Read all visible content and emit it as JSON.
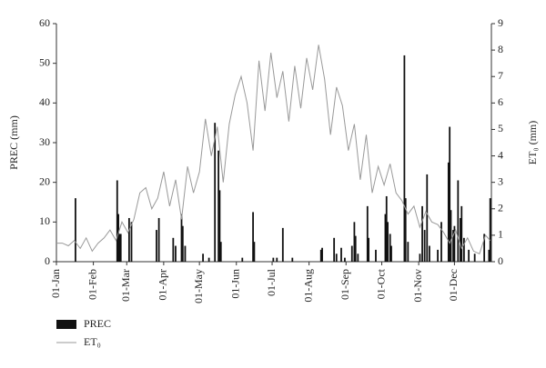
{
  "chart_data": {
    "type": "bar",
    "ylabel": "PREC (mm)",
    "y2label": "ET₀ (mm)",
    "xlim": [
      1,
      366
    ],
    "xticks": [
      {
        "value": 1,
        "label": "01-Jan"
      },
      {
        "value": 32,
        "label": "01-Feb"
      },
      {
        "value": 60,
        "label": "01-Mar"
      },
      {
        "value": 91,
        "label": "01-Apr"
      },
      {
        "value": 121,
        "label": "01-May"
      },
      {
        "value": 152,
        "label": "01-Jun"
      },
      {
        "value": 182,
        "label": "01-Jul"
      },
      {
        "value": 213,
        "label": "01-Aug"
      },
      {
        "value": 244,
        "label": "01-Sep"
      },
      {
        "value": 274,
        "label": "01-Oct"
      },
      {
        "value": 305,
        "label": "01-Nov"
      },
      {
        "value": 335,
        "label": "01-Dec"
      }
    ],
    "ylim": [
      0,
      60
    ],
    "yticks": [
      0,
      10,
      20,
      30,
      40,
      50,
      60
    ],
    "y2lim": [
      0,
      9
    ],
    "y2ticks": [
      0,
      1,
      2,
      3,
      4,
      5,
      6,
      7,
      8,
      9
    ],
    "grid": false,
    "series": [
      {
        "name": "PREC",
        "type": "bar",
        "color": "#111111",
        "x": [
          17,
          52,
          53,
          54,
          55,
          62,
          64,
          85,
          87,
          99,
          101,
          106,
          107,
          109,
          124,
          129,
          134,
          137,
          138,
          139,
          157,
          166,
          167,
          183,
          186,
          191,
          199,
          223,
          224,
          234,
          236,
          240,
          243,
          249,
          251,
          252,
          254,
          262,
          263,
          269,
          277,
          278,
          279,
          281,
          282,
          293,
          294,
          296,
          306,
          308,
          310,
          312,
          314,
          321,
          324,
          330,
          331,
          332,
          334,
          335,
          338,
          340,
          341,
          343,
          347,
          352,
          360,
          364,
          365
        ],
        "values": [
          16,
          20.5,
          12,
          7,
          7,
          11,
          10,
          8,
          11,
          6,
          4,
          12,
          9,
          4,
          2,
          1,
          35,
          28,
          18,
          5,
          1,
          12.5,
          5,
          1,
          1,
          8.5,
          1,
          3,
          3.5,
          6,
          2,
          3.5,
          1,
          4,
          10,
          6.5,
          2,
          14,
          6,
          3,
          12,
          16.5,
          10,
          7,
          4,
          52,
          16,
          5,
          2,
          14,
          8,
          22,
          4,
          3,
          10,
          25,
          34,
          13,
          8,
          9,
          20.5,
          11,
          14,
          6,
          3,
          2,
          7,
          3,
          16
        ]
      },
      {
        "name": "ET₀",
        "type": "line",
        "axis": "y2",
        "color": "#999999",
        "x": [
          1,
          6,
          11,
          16,
          21,
          26,
          31,
          36,
          41,
          46,
          51,
          56,
          61,
          66,
          71,
          76,
          81,
          86,
          91,
          96,
          101,
          106,
          111,
          116,
          121,
          126,
          131,
          136,
          141,
          146,
          151,
          156,
          161,
          166,
          171,
          176,
          181,
          186,
          191,
          196,
          201,
          206,
          211,
          216,
          221,
          226,
          231,
          236,
          241,
          246,
          251,
          256,
          261,
          266,
          271,
          276,
          281,
          286,
          291,
          296,
          301,
          306,
          311,
          316,
          321,
          326,
          331,
          336,
          341,
          346,
          351,
          356,
          361,
          365
        ],
        "values": [
          0.7,
          0.7,
          0.6,
          0.8,
          0.5,
          0.9,
          0.4,
          0.7,
          0.9,
          1.2,
          0.8,
          1.5,
          1.1,
          1.6,
          2.6,
          2.8,
          2.0,
          2.4,
          3.4,
          2.1,
          3.1,
          1.6,
          3.6,
          2.6,
          3.4,
          5.4,
          4.0,
          5.1,
          3.0,
          5.2,
          6.3,
          7.0,
          6.0,
          4.2,
          7.6,
          5.7,
          7.9,
          6.2,
          7.2,
          5.3,
          7.4,
          5.8,
          7.7,
          6.5,
          8.2,
          6.9,
          4.8,
          6.6,
          5.9,
          4.2,
          5.2,
          3.1,
          4.8,
          2.6,
          3.6,
          2.9,
          3.7,
          2.6,
          2.3,
          1.8,
          2.1,
          1.3,
          1.9,
          1.5,
          1.4,
          1.1,
          0.7,
          1.2,
          0.5,
          0.9,
          0.4,
          0.3,
          1.0,
          0.8
        ]
      }
    ]
  }
}
